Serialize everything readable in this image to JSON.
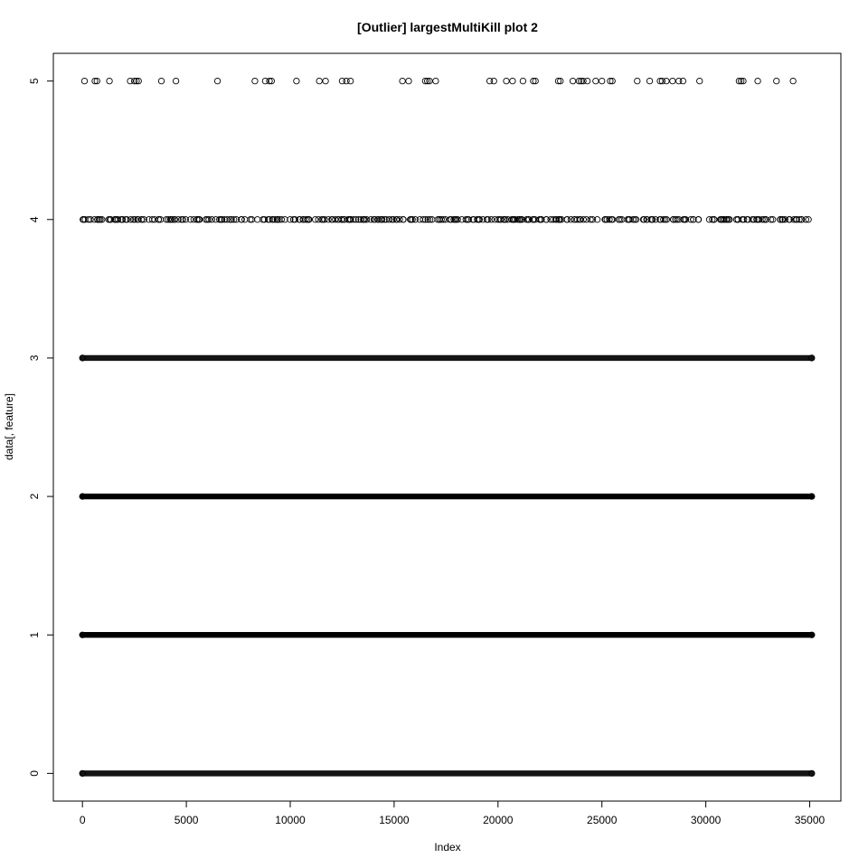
{
  "chart_data": {
    "type": "scatter",
    "title": "[Outlier] largestMultiKill plot 2",
    "xlabel": "Index",
    "ylabel": "data[, feature]",
    "xlim": [
      -1400,
      36500
    ],
    "ylim": [
      -0.2,
      5.2
    ],
    "xticks": [
      0,
      5000,
      10000,
      15000,
      20000,
      25000,
      30000,
      35000
    ],
    "yticks": [
      0,
      1,
      2,
      3,
      4,
      5
    ],
    "xtick_labels": [
      "0",
      "5000",
      "10000",
      "15000",
      "20000",
      "25000",
      "30000",
      "35000"
    ],
    "ytick_labels": [
      "0",
      "1",
      "2",
      "3",
      "4",
      "5"
    ],
    "n_points": 35100,
    "grid": false,
    "marker": "open-circle",
    "series": [
      {
        "y": 5,
        "x": [
          100,
          600,
          700,
          1300,
          2300,
          2500,
          2600,
          2700,
          3800,
          4500,
          6500,
          8300,
          8800,
          9000,
          9100,
          10300,
          11400,
          11700,
          12500,
          12700,
          12900,
          15400,
          15700,
          16500,
          16600,
          16700,
          17000,
          19600,
          19800,
          20400,
          20700,
          21200,
          21700,
          21800,
          22900,
          23000,
          23600,
          23900,
          24000,
          24100,
          24300,
          24700,
          25000,
          25400,
          25500,
          26700,
          27300,
          27800,
          27900,
          28100,
          28400,
          28700,
          28900,
          29700,
          31600,
          31700,
          31800,
          32500,
          33400,
          34200
        ]
      },
      {
        "y": 4,
        "dense": false,
        "x_range": [
          0,
          35100
        ],
        "approx_count": 520
      },
      {
        "y": 3,
        "dense": true,
        "x_range": [
          0,
          35100
        ]
      },
      {
        "y": 2,
        "dense": true,
        "x_range": [
          0,
          35100
        ]
      },
      {
        "y": 1,
        "dense": true,
        "x_range": [
          0,
          35100
        ]
      },
      {
        "y": 0,
        "dense": true,
        "x_range": [
          0,
          35100
        ]
      }
    ]
  }
}
